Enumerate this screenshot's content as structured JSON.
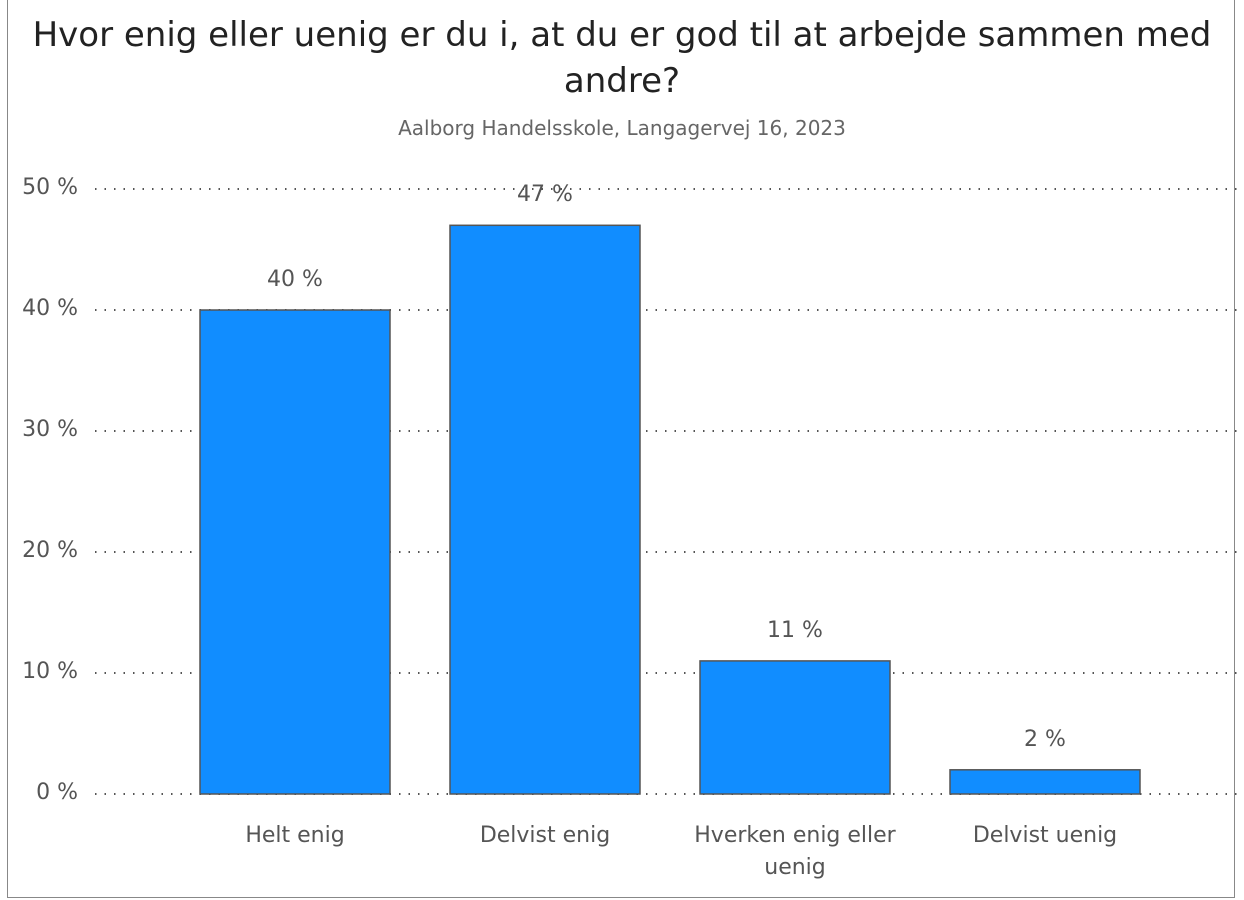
{
  "chart_data": {
    "type": "bar",
    "title": "Hvor enig eller uenig er du i, at du er god til at arbejde sammen med andre?",
    "subtitle": "Aalborg Handelsskole, Langagervej 16, 2023",
    "categories": [
      "Helt enig",
      "Delvist enig",
      "Hverken enig eller uenig",
      "Delvist uenig"
    ],
    "values": [
      40,
      47,
      11,
      2
    ],
    "value_labels": [
      "40 %",
      "47 %",
      "11 %",
      "2 %"
    ],
    "color": "#118dff",
    "ylim": [
      0,
      50
    ],
    "yticks": [
      {
        "value": 0,
        "label": "0 %"
      },
      {
        "value": 10,
        "label": "10 %"
      },
      {
        "value": 20,
        "label": "20 %"
      },
      {
        "value": 30,
        "label": "30 %"
      },
      {
        "value": 40,
        "label": "40 %"
      },
      {
        "value": 50,
        "label": "50 %"
      }
    ],
    "grid": true
  }
}
